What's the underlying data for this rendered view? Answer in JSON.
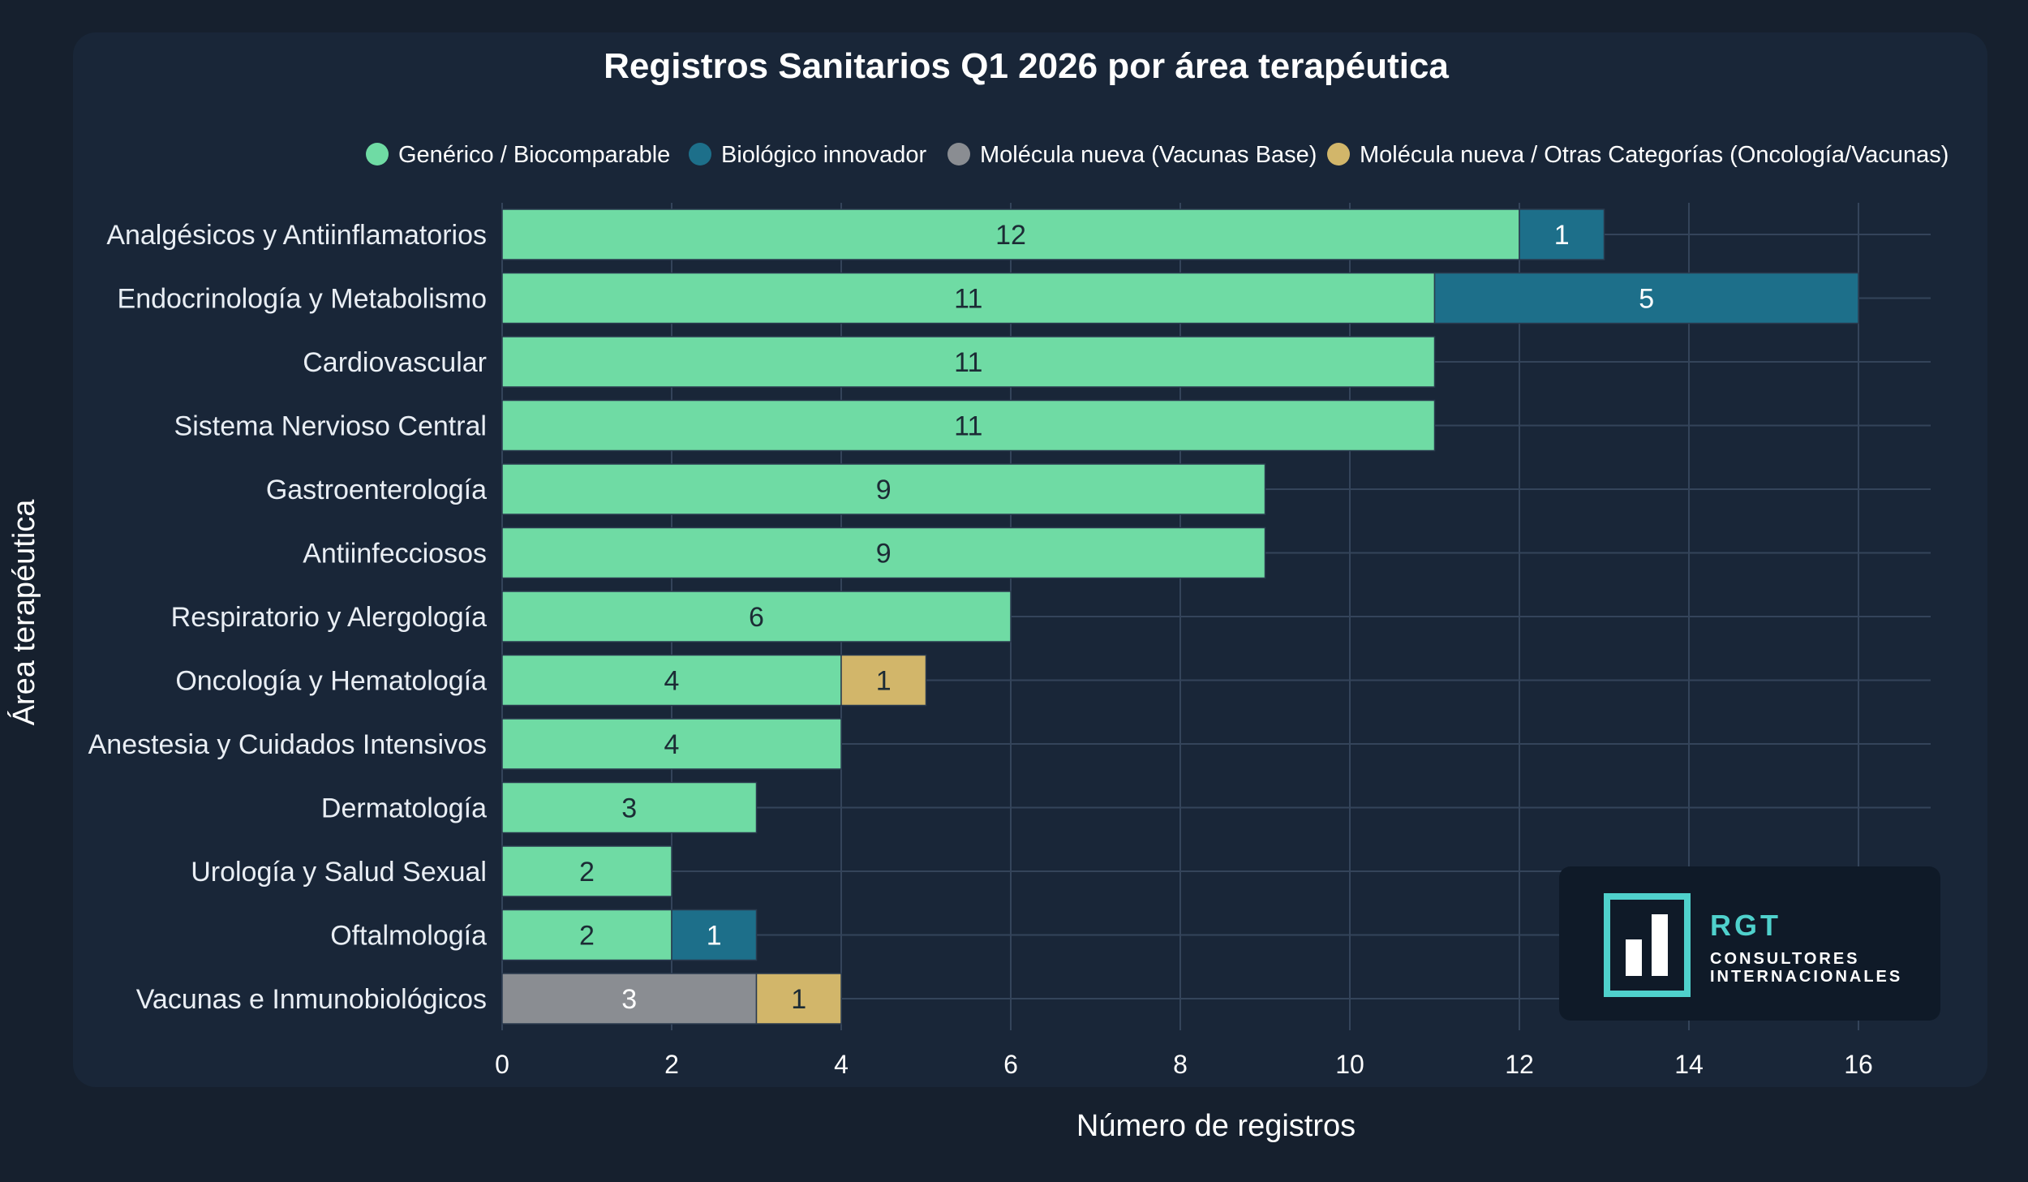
{
  "chart_data": {
    "type": "bar",
    "orientation": "horizontal",
    "stacked": true,
    "title": "Registros Sanitarios Q1 2026 por área terapéutica",
    "xlabel": "Número de registros",
    "ylabel": "Área terapéutica",
    "xlim": [
      0,
      16
    ],
    "xticks": [
      "0",
      "2",
      "4",
      "6",
      "8",
      "10",
      "12",
      "14",
      "16"
    ],
    "grid": true,
    "legend_position": "top-right",
    "categories": [
      "Analgésicos y Antiinflamatorios",
      "Endocrinología y Metabolismo",
      "Cardiovascular",
      "Sistema Nervioso Central",
      "Gastroenterología",
      "Antiinfecciosos",
      "Respiratorio y Alergología",
      "Oncología y Hematología",
      "Anestesia y Cuidados Intensivos",
      "Dermatología",
      "Urología y Salud Sexual",
      "Oftalmología",
      "Vacunas e Inmunobiológicos"
    ],
    "series": [
      {
        "name": "Genérico / Biocomparable",
        "color": "#6fdba4",
        "values": [
          12,
          11,
          11,
          11,
          9,
          9,
          6,
          4,
          4,
          3,
          2,
          2,
          0
        ]
      },
      {
        "name": "Biológico innovador",
        "color": "#1d6f8a",
        "values": [
          1,
          5,
          0,
          0,
          0,
          0,
          0,
          0,
          0,
          0,
          0,
          1,
          0
        ]
      },
      {
        "name": "Molécula nueva (Vacunas Base)",
        "color": "#8a8d92",
        "values": [
          0,
          0,
          0,
          0,
          0,
          0,
          0,
          0,
          0,
          0,
          0,
          0,
          3
        ]
      },
      {
        "name": "Molécula nueva / Otras Categorías (Oncología/Vacunas)",
        "color": "#d2b66a",
        "values": [
          0,
          0,
          0,
          0,
          0,
          0,
          0,
          1,
          0,
          0,
          0,
          0,
          1
        ]
      }
    ]
  },
  "colors": {
    "background": "#16202e",
    "panel": "#192638",
    "grid": "#34445a",
    "text": "#ffffff",
    "label_text": "#e9eef4",
    "logo_teal": "#4fd1cc",
    "logo_box": "#0f1a28"
  },
  "logo": {
    "name": "RGT",
    "line1": "CONSULTORES",
    "line2": "INTERNACIONALES",
    "icon": "bar-chart-logo-icon"
  }
}
